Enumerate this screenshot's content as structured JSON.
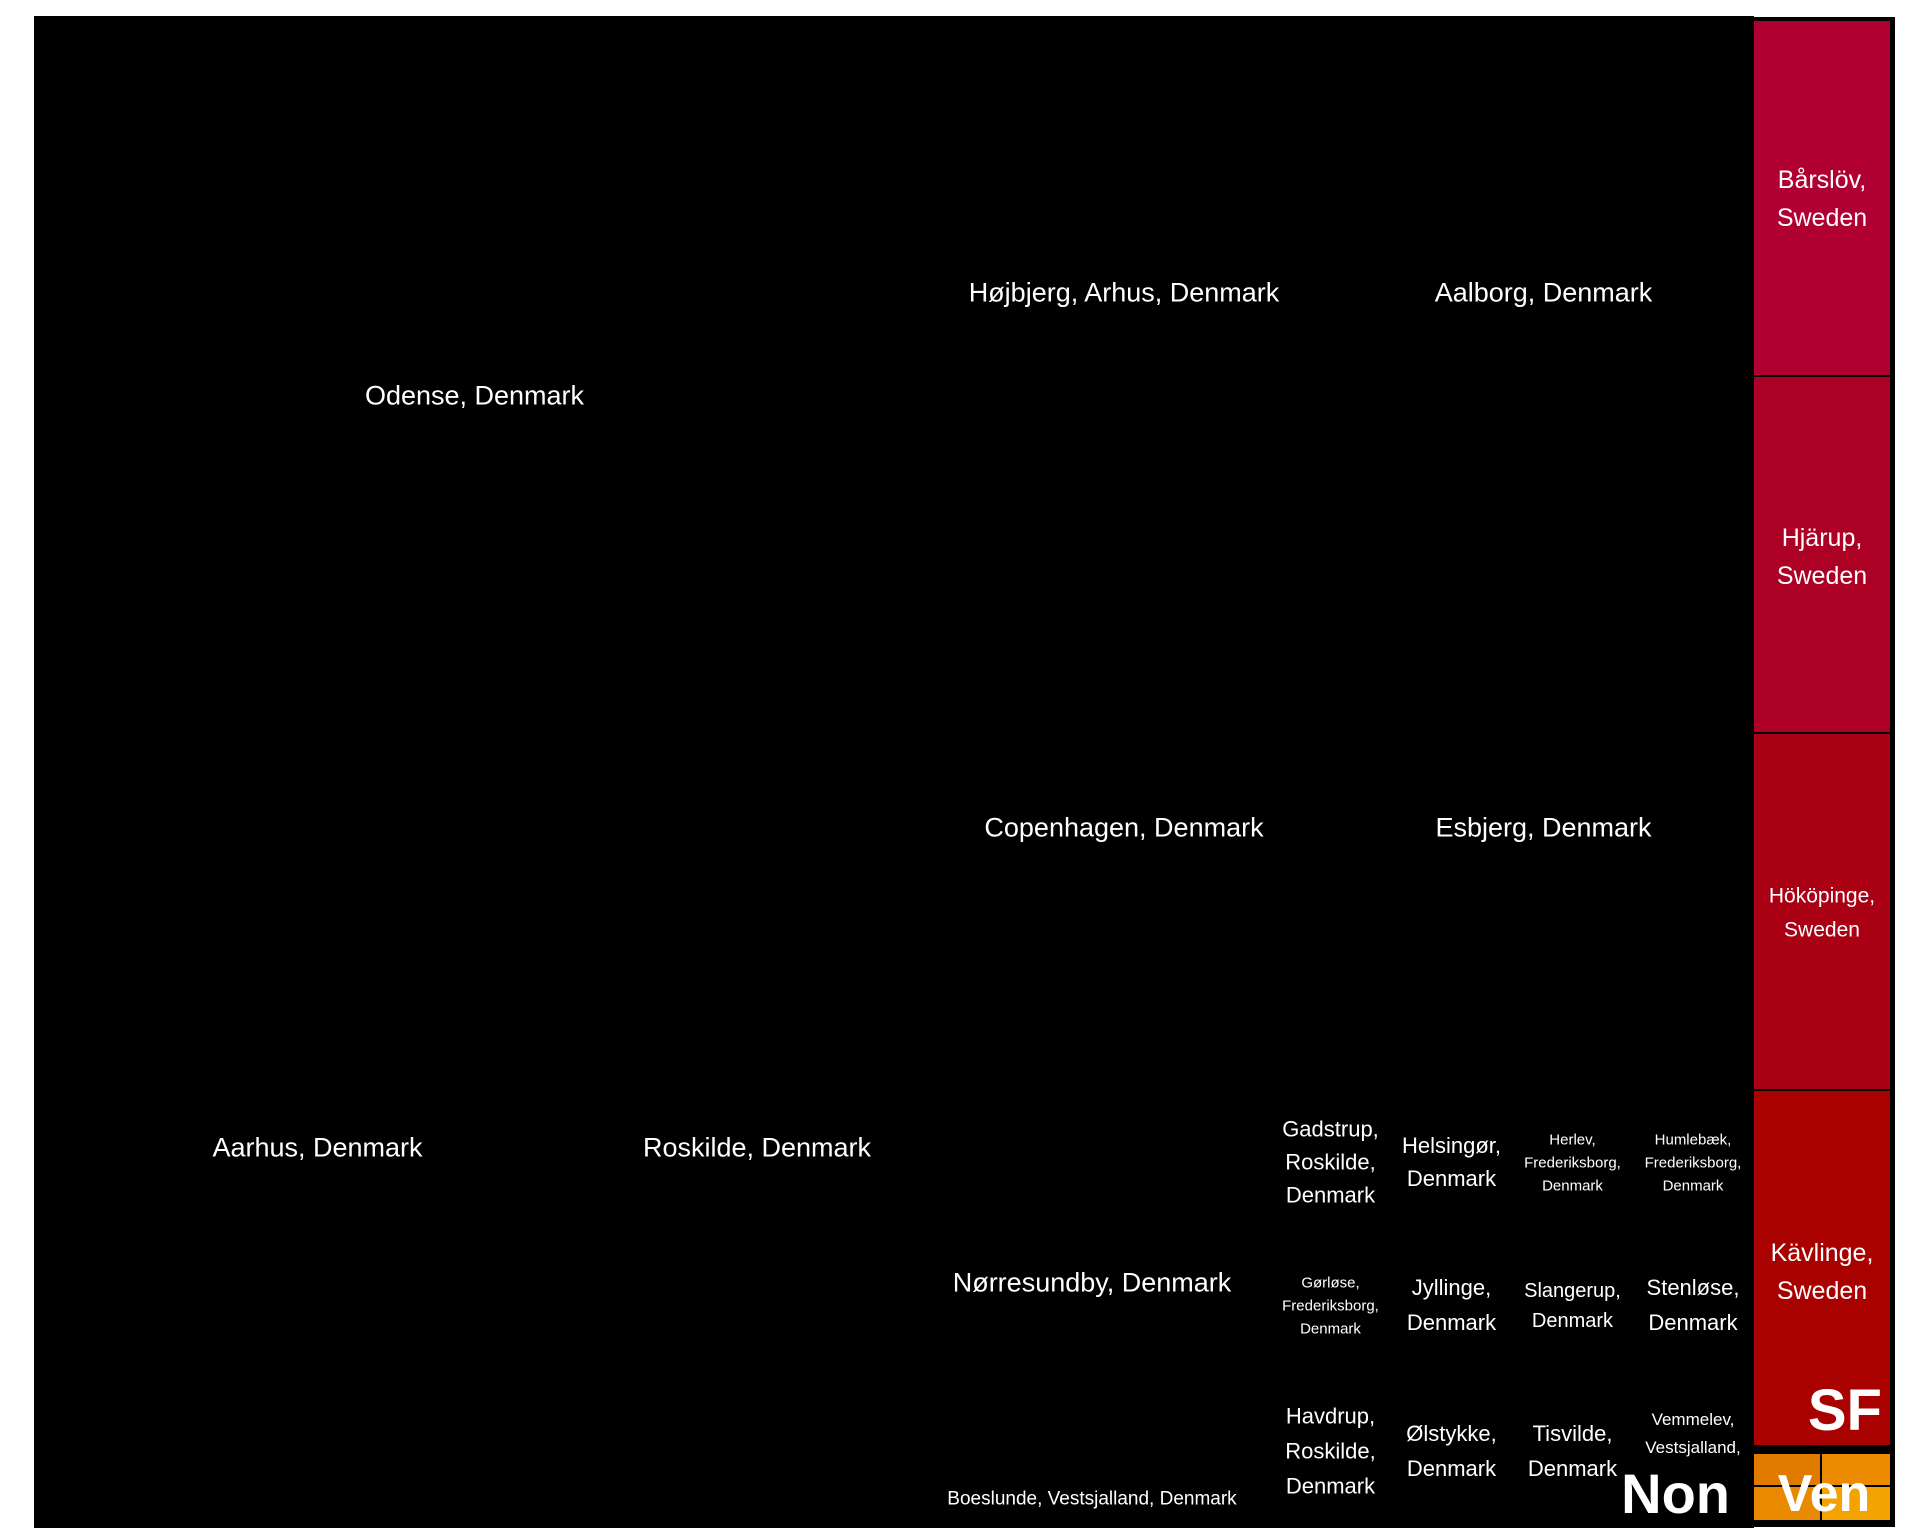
{
  "chart_data": {
    "type": "treemap",
    "colors": {
      "non": "#000000",
      "sf": [
        "#b00032",
        "#ac0025",
        "#a90014",
        "#a90000"
      ],
      "ven": [
        "#e07b00",
        "#ec8a00",
        "#e88900",
        "#f2a300"
      ],
      "border": "#000000"
    },
    "groups": [
      {
        "name": "Non",
        "cells": [
          {
            "label": "Odense, Denmark"
          },
          {
            "label": "Aarhus, Denmark"
          },
          {
            "label": "Roskilde, Denmark"
          },
          {
            "label": "Højbjerg, Arhus, Denmark"
          },
          {
            "label": "Aalborg, Denmark"
          },
          {
            "label": "Copenhagen, Denmark"
          },
          {
            "label": "Esbjerg, Denmark"
          },
          {
            "label": "Nørresundby, Denmark"
          },
          {
            "label": "Boeslunde, Vestsjalland, Denmark"
          },
          {
            "label": "Gadstrup, Roskilde, Denmark"
          },
          {
            "label": "Helsingør, Denmark"
          },
          {
            "label": "Herlev, Frederiksborg, Denmark"
          },
          {
            "label": "Humlebæk, Frederiksborg, Denmark"
          },
          {
            "label": "Gørløse, Frederiksborg, Denmark"
          },
          {
            "label": "Jyllinge, Denmark"
          },
          {
            "label": "Slangerup, Denmark"
          },
          {
            "label": "Stenløse, Denmark"
          },
          {
            "label": "Havdrup, Roskilde, Denmark"
          },
          {
            "label": "Ølstykke, Denmark"
          },
          {
            "label": "Tisvilde, Denmark"
          },
          {
            "label": "Vemmelev, Vestsjalland,"
          }
        ]
      },
      {
        "name": "SF",
        "cells": [
          {
            "label": "Bårslöv, Sweden"
          },
          {
            "label": "Hjärup, Sweden"
          },
          {
            "label": "Hököpinge, Sweden"
          },
          {
            "label": "Kävlinge, Sweden"
          }
        ]
      },
      {
        "name": "Ven",
        "cells": [
          {
            "label": ""
          },
          {
            "label": ""
          },
          {
            "label": ""
          },
          {
            "label": ""
          }
        ]
      }
    ]
  }
}
